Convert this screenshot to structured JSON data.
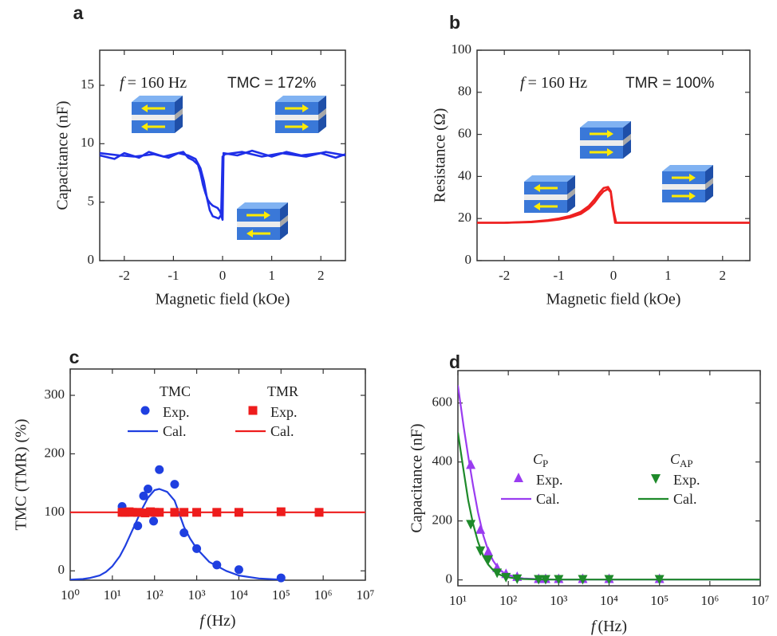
{
  "chart_data": [
    {
      "type": "line",
      "panel": "a",
      "x_label": "Magnetic field (kOe)",
      "y_label": "Capacitance (nF)",
      "xlim": [
        -2.5,
        2.5
      ],
      "ylim": [
        0,
        18
      ],
      "xticks": [
        -2,
        -1,
        0,
        1,
        2
      ],
      "yticks": [
        0,
        5,
        10,
        15
      ],
      "annotations": [
        {
          "var": "f",
          "text": "= 160 Hz"
        },
        {
          "text": "TMC = 172%",
          "color": "#2424e8"
        }
      ],
      "series": [
        {
          "mode": "line",
          "color": "#1f2fe8",
          "x": [
            -2.5,
            -2.2,
            -2,
            -1.7,
            -1.5,
            -1.2,
            -1,
            -0.8,
            -0.7,
            -0.6,
            -0.5,
            -0.45,
            -0.4,
            -0.35,
            -0.3,
            -0.25,
            -0.2,
            -0.15,
            -0.1,
            -0.05,
            0,
            0.02,
            0.3,
            0.6,
            1,
            1.3,
            1.6,
            2,
            2.3,
            2.5
          ],
          "values": [
            9,
            8.7,
            9.2,
            8.8,
            9.3,
            8.9,
            9.1,
            9.3,
            8.8,
            8.6,
            8.2,
            7.5,
            6.5,
            5.8,
            5.2,
            4.9,
            4.7,
            4.6,
            4.5,
            4.2,
            3.5,
            9.2,
            9,
            9.4,
            8.9,
            9.3,
            9,
            9.2,
            8.8,
            9.1
          ]
        },
        {
          "mode": "line",
          "color": "#1f2fe8",
          "x": [
            -2.5,
            -2.1,
            -1.8,
            -1.4,
            -1.1,
            -0.9,
            -0.7,
            -0.55,
            -0.45,
            -0.38,
            -0.32,
            -0.26,
            -0.2,
            -0.14,
            -0.08,
            -0.03,
            0,
            0.05,
            0.4,
            0.8,
            1.2,
            1.7,
            2.1,
            2.5
          ],
          "values": [
            9.2,
            9,
            8.9,
            9.1,
            8.8,
            9.2,
            9,
            8.7,
            7.9,
            6.8,
            5.4,
            4.3,
            3.8,
            3.7,
            3.6,
            3.9,
            8.9,
            9.1,
            9.3,
            8.9,
            9.2,
            8.9,
            9.3,
            9
          ]
        }
      ]
    },
    {
      "type": "line",
      "panel": "b",
      "x_label": "Magnetic field (kOe)",
      "y_label": "Resistance (Ω)",
      "xlim": [
        -2.5,
        2.5
      ],
      "ylim": [
        0,
        100
      ],
      "xticks": [
        -2,
        -1,
        0,
        1,
        2
      ],
      "yticks": [
        0,
        20,
        40,
        60,
        80,
        100
      ],
      "annotations": [
        {
          "var": "f",
          "text": "= 160 Hz"
        },
        {
          "text": "TMR = 100%",
          "color": "#ee1c1c"
        }
      ],
      "series": [
        {
          "mode": "line",
          "color": "#ee2020",
          "x": [
            -2.5,
            -2,
            -1.5,
            -1.2,
            -1,
            -0.8,
            -0.6,
            -0.45,
            -0.35,
            -0.25,
            -0.18,
            -0.1,
            -0.05,
            0,
            0.05,
            0.5,
            1,
            2,
            2.5
          ],
          "values": [
            18,
            18,
            18.5,
            19.2,
            20,
            21.2,
            23.2,
            26,
            29,
            32.5,
            34.5,
            35,
            33,
            24,
            18,
            18,
            18,
            18,
            18
          ]
        },
        {
          "mode": "line",
          "color": "#ee2020",
          "x": [
            -2.5,
            -2,
            -1.5,
            -1.2,
            -1,
            -0.8,
            -0.6,
            -0.45,
            -0.35,
            -0.25,
            -0.18,
            -0.1,
            -0.05,
            -0.02,
            0.03,
            0.5,
            1,
            2,
            2.5
          ],
          "values": [
            18,
            18,
            18.3,
            18.9,
            19.5,
            20.5,
            22.2,
            24.8,
            27.5,
            31,
            33,
            34,
            32.5,
            26,
            18,
            18,
            18,
            18,
            18
          ]
        }
      ]
    },
    {
      "type": "scatter",
      "panel": "c",
      "x_label": {
        "var": "f",
        "unit": "(Hz)"
      },
      "y_label": "TMC (TMR) (%)",
      "xscale": "log",
      "xlim": [
        1,
        10000000
      ],
      "ylim": [
        -16,
        345
      ],
      "xticks": [
        {
          "value": 1,
          "label": "10⁰"
        },
        {
          "value": 10,
          "label": "10¹"
        },
        {
          "value": 100,
          "label": "10²"
        },
        {
          "value": 1000,
          "label": "10³"
        },
        {
          "value": 10000,
          "label": "10⁴"
        },
        {
          "value": 100000,
          "label": "10⁵"
        },
        {
          "value": 1000000,
          "label": "10⁶"
        },
        {
          "value": 10000000,
          "label": "10⁷"
        }
      ],
      "yticks": [
        0,
        100,
        200,
        300
      ],
      "legend_titles": [
        "TMC",
        "TMR"
      ],
      "series": [
        {
          "name": "Exp.",
          "mode": "markers",
          "marker": "circle",
          "color": "#1f3fe0",
          "x": [
            17,
            22,
            40,
            55,
            70,
            95,
            130,
            300,
            500,
            1000,
            3000,
            10000,
            100000
          ],
          "values": [
            110,
            100,
            77,
            128,
            140,
            85,
            173,
            148,
            65,
            38,
            10,
            2,
            -12
          ]
        },
        {
          "name": "Cal.",
          "mode": "line",
          "color": "#1f3fe0",
          "x": [
            1,
            2,
            3,
            5,
            7,
            10,
            15,
            20,
            30,
            50,
            70,
            100,
            130,
            200,
            300,
            500,
            700,
            1000,
            2000,
            5000,
            10000,
            30000,
            100000
          ],
          "values": [
            -15,
            -14,
            -12,
            -8,
            -2,
            8,
            25,
            42,
            70,
            105,
            125,
            138,
            140,
            135,
            120,
            75,
            55,
            38,
            15,
            0,
            -8,
            -13,
            -15
          ]
        },
        {
          "name": "Exp.",
          "mode": "markers",
          "marker": "square",
          "color": "#ee1c1c",
          "x": [
            17,
            20,
            25,
            30,
            40,
            60,
            80,
            100,
            130,
            300,
            500,
            1000,
            3000,
            10000,
            100000,
            800000
          ],
          "values": [
            100,
            100,
            101,
            100,
            100,
            99,
            101,
            100,
            100,
            100,
            100,
            100,
            100,
            100,
            101,
            100
          ]
        },
        {
          "name": "Cal.",
          "mode": "line",
          "color": "#ee1c1c",
          "x": [
            1,
            10000000
          ],
          "values": [
            100,
            100
          ]
        }
      ]
    },
    {
      "type": "scatter",
      "panel": "d",
      "x_label": {
        "var": "f",
        "unit": "(Hz)"
      },
      "y_label": "Capacitance (nF)",
      "xscale": "log",
      "xlim": [
        10,
        10000000
      ],
      "ylim": [
        -20,
        710
      ],
      "xticks": [
        {
          "value": 10,
          "label": "10¹"
        },
        {
          "value": 100,
          "label": "10²"
        },
        {
          "value": 1000,
          "label": "10³"
        },
        {
          "value": 10000,
          "label": "10⁴"
        },
        {
          "value": 100000,
          "label": "10⁵"
        },
        {
          "value": 1000000,
          "label": "10⁶"
        },
        {
          "value": 10000000,
          "label": "10⁷"
        }
      ],
      "yticks": [
        0,
        200,
        400,
        600
      ],
      "legend_titles": [
        {
          "main": "C",
          "sub": "P"
        },
        {
          "main": "C",
          "sub": "AP"
        }
      ],
      "series": [
        {
          "name": "Exp.",
          "mode": "markers",
          "marker": "triangle-up",
          "color": "#9a3cf0",
          "x": [
            18,
            28,
            40,
            60,
            90,
            150,
            400,
            550,
            1000,
            3000,
            10000,
            100000
          ],
          "values": [
            390,
            170,
            95,
            40,
            20,
            10,
            3,
            3,
            3,
            3,
            3,
            3
          ]
        },
        {
          "name": "Cal.",
          "mode": "line",
          "color": "#9a3cf0",
          "x": [
            10,
            13,
            16,
            20,
            25,
            32,
            40,
            50,
            63,
            80,
            100,
            150,
            200,
            500,
            1000,
            10000,
            100000,
            1000000,
            10000000
          ],
          "values": [
            660,
            520,
            420,
            320,
            230,
            150,
            100,
            65,
            40,
            25,
            17,
            8,
            5,
            2,
            1,
            1,
            1,
            1,
            1
          ]
        },
        {
          "name": "Exp.",
          "mode": "markers",
          "marker": "triangle-down",
          "color": "#1e8a2a",
          "x": [
            18,
            28,
            40,
            60,
            90,
            150,
            400,
            550,
            1000,
            3000,
            10000,
            100000
          ],
          "values": [
            190,
            100,
            70,
            25,
            10,
            5,
            3,
            3,
            3,
            3,
            3,
            3
          ]
        },
        {
          "name": "Cal.",
          "mode": "line",
          "color": "#1e8a2a",
          "x": [
            10,
            13,
            16,
            20,
            25,
            32,
            40,
            50,
            63,
            80,
            100,
            150,
            200,
            500,
            1000,
            10000,
            100000,
            1000000,
            10000000
          ],
          "values": [
            500,
            370,
            270,
            190,
            130,
            80,
            52,
            33,
            20,
            13,
            9,
            4,
            3,
            1,
            1,
            1,
            1,
            1,
            1
          ]
        }
      ]
    }
  ]
}
